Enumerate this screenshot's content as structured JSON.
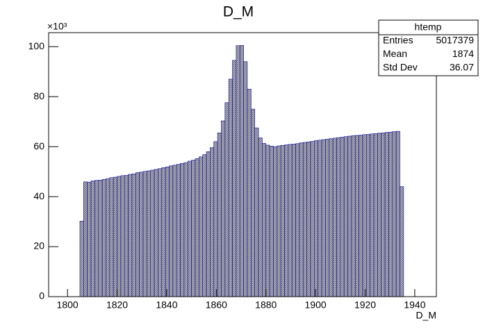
{
  "chart_data": {
    "type": "histogram",
    "title": "D_M",
    "x_label": "D_M",
    "y_multiplier": "×10³",
    "bins": [
      1805,
      1806.5,
      1808,
      1809.5,
      1811,
      1812.5,
      1814,
      1815.5,
      1817,
      1818.5,
      1820,
      1821.5,
      1823,
      1824.5,
      1826,
      1827.5,
      1829,
      1830.5,
      1832,
      1833.5,
      1835,
      1836.5,
      1838,
      1839.5,
      1841,
      1842.5,
      1844,
      1845.5,
      1847,
      1848.5,
      1850,
      1851.5,
      1853,
      1854.5,
      1856,
      1857.5,
      1859,
      1860.5,
      1862,
      1863.5,
      1865,
      1866.5,
      1868,
      1869.5,
      1871,
      1872.5,
      1874,
      1875.5,
      1877,
      1878.5,
      1880,
      1881.5,
      1883,
      1884.5,
      1886,
      1887.5,
      1889,
      1890.5,
      1892,
      1893.5,
      1895,
      1896.5,
      1898,
      1899.5,
      1901,
      1902.5,
      1904,
      1905.5,
      1907,
      1908.5,
      1910,
      1911.5,
      1913,
      1914.5,
      1916,
      1917.5,
      1919,
      1920.5,
      1922,
      1923.5,
      1925,
      1926.5,
      1928,
      1929.5,
      1931,
      1932.5,
      1934,
      1935.5
    ],
    "values": [
      30.2,
      45.9,
      45.8,
      46.3,
      46.5,
      46.6,
      46.9,
      47.2,
      47.6,
      47.8,
      48.1,
      48.4,
      48.5,
      48.9,
      49.1,
      49.6,
      49.8,
      50.1,
      50.3,
      50.6,
      50.9,
      51.2,
      51.6,
      51.9,
      52.3,
      52.6,
      52.9,
      53.3,
      53.6,
      54.2,
      54.6,
      55.2,
      55.9,
      56.8,
      58.0,
      59.6,
      62.0,
      65.5,
      70.3,
      77.6,
      87.0,
      94.5,
      100.4,
      100.5,
      94.0,
      83.0,
      75.0,
      67.5,
      63.5,
      61.3,
      60.6,
      60.2,
      60.0,
      60.3,
      60.5,
      60.7,
      60.9,
      61.0,
      61.2,
      61.5,
      61.7,
      61.9,
      62.1,
      62.4,
      62.6,
      62.8,
      63.0,
      63.2,
      63.4,
      63.6,
      63.8,
      64.0,
      64.2,
      64.4,
      64.5,
      64.6,
      64.8,
      64.9,
      65.1,
      65.2,
      65.4,
      65.5,
      65.7,
      65.8,
      66.0,
      66.1,
      44.0
    ],
    "color": "#000099",
    "xlim": [
      1792.4,
      1948.7
    ],
    "xticks": [
      1800,
      1820,
      1840,
      1860,
      1880,
      1900,
      1920,
      1940
    ],
    "ylim": [
      0,
      105.6
    ],
    "yticks": [
      0,
      20,
      40,
      60,
      80,
      100
    ],
    "stats_box": {
      "title": "htemp",
      "rows": [
        {
          "label": "Entries",
          "value": 5017379
        },
        {
          "label": "Mean",
          "value": 1874
        },
        {
          "label": "Std Dev",
          "value": 36.07
        }
      ]
    }
  }
}
